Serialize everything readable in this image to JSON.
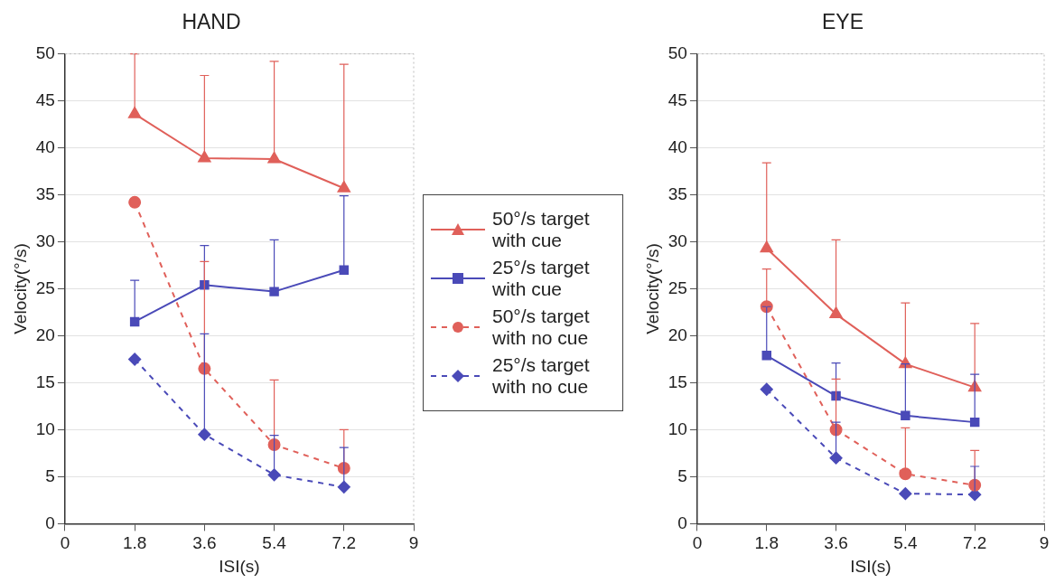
{
  "chart_data": [
    {
      "type": "line",
      "title": "HAND",
      "xlabel": "ISI(s)",
      "ylabel": "Velocity(°/s)",
      "x": [
        1.8,
        3.6,
        5.4,
        7.2
      ],
      "xlim": [
        0,
        9
      ],
      "xticks": [
        0,
        1.8,
        3.6,
        5.4,
        7.2,
        9
      ],
      "ylim": [
        0,
        50
      ],
      "yticks": [
        0,
        5,
        10,
        15,
        20,
        25,
        30,
        35,
        40,
        45,
        50
      ],
      "grid": "y",
      "legend": "right",
      "series": [
        {
          "name": "50°/s target with cue",
          "color": "#e0605a",
          "marker": "triangle",
          "line_style": "solid",
          "values": [
            43.6,
            38.9,
            38.8,
            35.7
          ],
          "errors": [
            [
              43.6,
              50
            ],
            [
              38.9,
              47.7
            ],
            [
              38.8,
              49.2
            ],
            [
              35.7,
              48.9
            ]
          ]
        },
        {
          "name": "25°/s target with cue",
          "color": "#4a4ab8",
          "marker": "square",
          "line_style": "solid",
          "values": [
            21.5,
            25.4,
            24.7,
            27.0
          ],
          "errors": [
            [
              21.5,
              25.9
            ],
            [
              25.4,
              29.6
            ],
            [
              24.7,
              30.2
            ],
            [
              27.0,
              34.9
            ]
          ]
        },
        {
          "name": "50°/s target with no cue",
          "color": "#e0605a",
          "marker": "circle",
          "line_style": "dashed",
          "values": [
            34.2,
            16.5,
            8.4,
            5.9
          ],
          "errors": [
            null,
            [
              16.5,
              27.9
            ],
            [
              8.4,
              15.3
            ],
            [
              5.9,
              10.0
            ]
          ]
        },
        {
          "name": "25°/s target with no cue",
          "color": "#4a4ab8",
          "marker": "diamond",
          "line_style": "dashed",
          "values": [
            17.5,
            9.5,
            5.2,
            3.9
          ],
          "errors": [
            null,
            [
              9.5,
              20.2
            ],
            [
              5.2,
              9.4
            ],
            [
              3.9,
              8.1
            ]
          ]
        }
      ]
    },
    {
      "type": "line",
      "title": "EYE",
      "xlabel": "ISI(s)",
      "ylabel": "Velocity(°/s)",
      "x": [
        1.8,
        3.6,
        5.4,
        7.2
      ],
      "xlim": [
        0,
        9
      ],
      "xticks": [
        0,
        1.8,
        3.6,
        5.4,
        7.2,
        9
      ],
      "ylim": [
        0,
        50
      ],
      "yticks": [
        0,
        5,
        10,
        15,
        20,
        25,
        30,
        35,
        40,
        45,
        50
      ],
      "grid": "y",
      "series": [
        {
          "color": "#e0605a",
          "marker": "triangle",
          "line_style": "solid",
          "values": [
            29.3,
            22.3,
            17.0,
            14.5
          ],
          "errors": [
            [
              29.3,
              38.4
            ],
            [
              22.3,
              30.2
            ],
            [
              17.0,
              23.5
            ],
            [
              14.5,
              21.3
            ]
          ]
        },
        {
          "color": "#4a4ab8",
          "marker": "square",
          "line_style": "solid",
          "values": [
            17.9,
            13.6,
            11.5,
            10.8
          ],
          "errors": [
            [
              17.9,
              23.1
            ],
            [
              13.6,
              17.1
            ],
            [
              11.5,
              17.0
            ],
            [
              10.8,
              15.9
            ]
          ]
        },
        {
          "color": "#e0605a",
          "marker": "circle",
          "line_style": "dashed",
          "values": [
            23.1,
            10.0,
            5.3,
            4.1
          ],
          "errors": [
            [
              23.1,
              27.1
            ],
            [
              10.0,
              15.4
            ],
            [
              5.3,
              10.2
            ],
            [
              4.1,
              7.8
            ]
          ]
        },
        {
          "color": "#4a4ab8",
          "marker": "diamond",
          "line_style": "dashed",
          "values": [
            14.3,
            7.0,
            3.2,
            3.1
          ],
          "errors": [
            null,
            [
              7.0,
              10.8
            ],
            null,
            [
              3.1,
              6.1
            ]
          ]
        }
      ]
    }
  ]
}
